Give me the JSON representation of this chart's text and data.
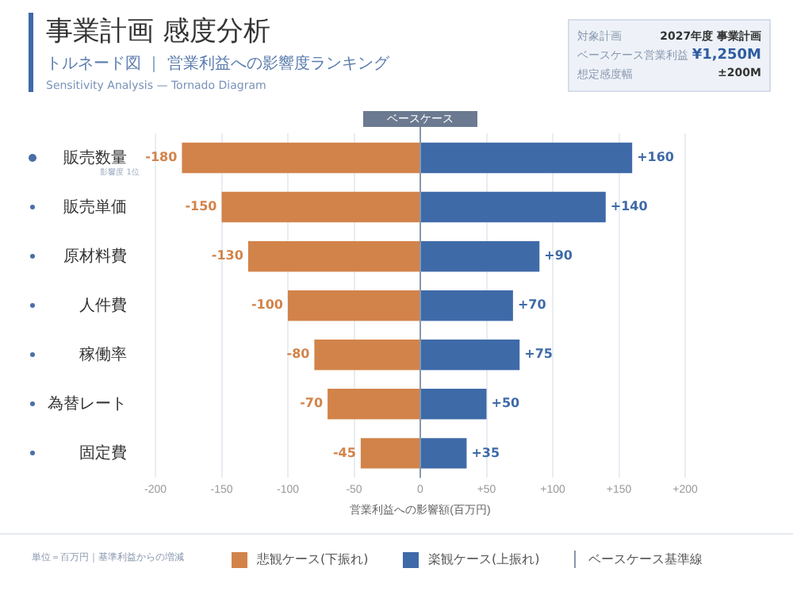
{
  "chart_data": {
    "type": "bar",
    "orientation": "horizontal",
    "stacked": true,
    "title": "事業計画 感度分析",
    "subtitle": "トルネード図 ｜ 営業利益への影響度ランキング",
    "xlabel": "営業利益への影響額(百万円)",
    "categories": [
      "販売数量",
      "販売単価",
      "原材料費",
      "人件費",
      "稼働率",
      "為替レート",
      "固定費"
    ],
    "series": [
      {
        "name": "悲観ケース(下振れ)",
        "color": "#d2834a",
        "values": [
          -180,
          -150,
          -130,
          -100,
          -80,
          -70,
          -45
        ],
        "value_labels": [
          "-180",
          "-150",
          "-130",
          "-100",
          "-80",
          "-70",
          "-45"
        ]
      },
      {
        "name": "楽観ケース(上振れ)",
        "color": "#3f6aa8",
        "values": [
          160,
          140,
          90,
          70,
          75,
          50,
          35
        ],
        "value_labels": [
          "+160",
          "+140",
          "+90",
          "+70",
          "+75",
          "+50",
          "+35"
        ]
      }
    ],
    "xlim": [
      -200,
      200
    ],
    "xticks": [
      -200,
      -150,
      -100,
      -50,
      0,
      {
        "value": 50,
        "label": "+50"
      },
      {
        "value": 100,
        "label": "+100"
      },
      {
        "value": 150,
        "label": "+150"
      },
      {
        "value": 200,
        "label": "+200"
      }
    ],
    "grid": "x",
    "legend": "bottom",
    "ref_lines": [
      {
        "axis": "x",
        "value": 0,
        "label": "ベースケース",
        "color": "#8a97ab"
      }
    ],
    "annotations": [
      "Sensitivity Analysis — Tornado Diagram",
      "対象計画",
      "2027年度 事業計画",
      "ベースケース営業利益",
      "¥1,250M",
      "想定感度幅",
      "±200M",
      "影響度 1位",
      "単位＝百万円｜基準利益からの増減",
      "ベースケース基準線"
    ]
  }
}
